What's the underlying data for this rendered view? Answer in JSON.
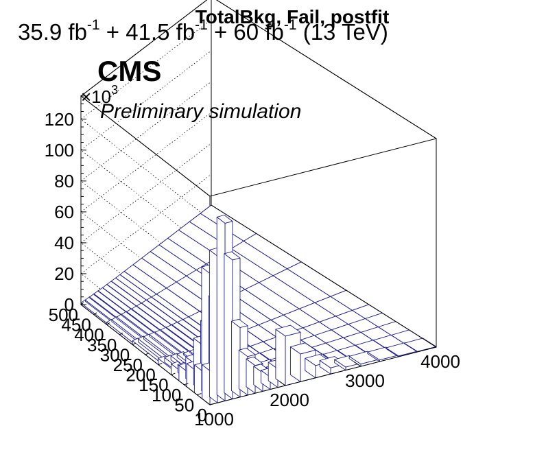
{
  "chart_data": {
    "type": "bar3d",
    "title": "TotalBkg, Fail, postfit",
    "lumi_label": "35.9 fb-1 + 41.5 fb-1 + 60 fb-1 (13 TeV)",
    "lumi_parts": [
      "35.9 fb",
      "-1",
      " + 41.5 fb",
      "-1",
      " + 60 fb",
      "-1",
      " (13 TeV)"
    ],
    "experiment": "CMS",
    "subtitle": "Preliminary simulation",
    "z_multiplier": "×10",
    "z_multiplier_exp": "3",
    "x_range": [
      1000,
      4000
    ],
    "y_range": [
      0,
      500
    ],
    "z_range": [
      0,
      135
    ],
    "x_ticks": [
      "1000",
      "2000",
      "3000",
      "4000"
    ],
    "x_tick_values": [
      1000,
      2000,
      3000,
      4000
    ],
    "y_ticks": [
      "0",
      "50",
      "100",
      "150",
      "200",
      "250",
      "300",
      "350",
      "400",
      "450",
      "500"
    ],
    "y_tick_values": [
      0,
      50,
      100,
      150,
      200,
      250,
      300,
      350,
      400,
      450,
      500
    ],
    "z_ticks": [
      "0",
      "20",
      "40",
      "60",
      "80",
      "100",
      "120"
    ],
    "z_tick_values": [
      0,
      20,
      40,
      60,
      80,
      100,
      120
    ],
    "x_edges": [
      1000,
      1100,
      1200,
      1300,
      1400,
      1500,
      1600,
      1700,
      1800,
      1900,
      2000,
      2200,
      2400,
      2600,
      2800,
      3000,
      3250,
      3500,
      3750,
      4000
    ],
    "y_edges": [
      0,
      30,
      60,
      90,
      120,
      150,
      200,
      300,
      400,
      500
    ],
    "values_note_units": "z in thousands of events",
    "values": [
      [
        22,
        95,
        115,
        90,
        45,
        25,
        18,
        12,
        8,
        12,
        32,
        18,
        8,
        4,
        2,
        1.5,
        1,
        0.5,
        0.3
      ],
      [
        18,
        80,
        60,
        45,
        28,
        15,
        10,
        6,
        4,
        3,
        3,
        2,
        1.2,
        0.8,
        0.5,
        0.4,
        0.3,
        0.2,
        0.1
      ],
      [
        15,
        30,
        40,
        22,
        8,
        5,
        3,
        2,
        1.5,
        1.2,
        0.9,
        0.6,
        0.4,
        0.3,
        0.2,
        0.15,
        0.1,
        0.08,
        0.05
      ],
      [
        10,
        14,
        9,
        6,
        3,
        2,
        1.5,
        1,
        0.8,
        0.6,
        0.5,
        0.4,
        0.3,
        0.2,
        0.15,
        0.1,
        0.08,
        0.05,
        0.03
      ],
      [
        7,
        5,
        4,
        3,
        1.5,
        1,
        0.8,
        0.6,
        0.5,
        0.4,
        0.3,
        0.2,
        0.15,
        0.1,
        0.08,
        0.06,
        0.05,
        0.03,
        0.02
      ],
      [
        4,
        3,
        2.5,
        2,
        1,
        0.8,
        0.6,
        0.5,
        0.4,
        0.3,
        0.25,
        0.2,
        0.15,
        0.1,
        0.08,
        0.06,
        0.05,
        0.03,
        0.02
      ],
      [
        2.5,
        2,
        1.5,
        1.2,
        0.8,
        0.6,
        0.5,
        0.4,
        0.3,
        0.25,
        0.2,
        0.15,
        0.1,
        0.08,
        0.06,
        0.05,
        0.04,
        0.03,
        0.02
      ],
      [
        1.5,
        1.2,
        1,
        0.8,
        0.5,
        0.4,
        0.3,
        0.25,
        0.2,
        0.15,
        0.12,
        0.1,
        0.08,
        0.06,
        0.05,
        0.04,
        0.03,
        0.02,
        0.01
      ],
      [
        1,
        0.8,
        0.6,
        0.5,
        0.3,
        0.25,
        0.2,
        0.15,
        0.12,
        0.1,
        0.08,
        0.06,
        0.05,
        0.04,
        0.03,
        0.02,
        0.02,
        0.01,
        0.01
      ]
    ],
    "grid": true,
    "bar_fill": "#ffffff",
    "bar_edge": "#1f1f8c",
    "frame_color": "#000000"
  }
}
